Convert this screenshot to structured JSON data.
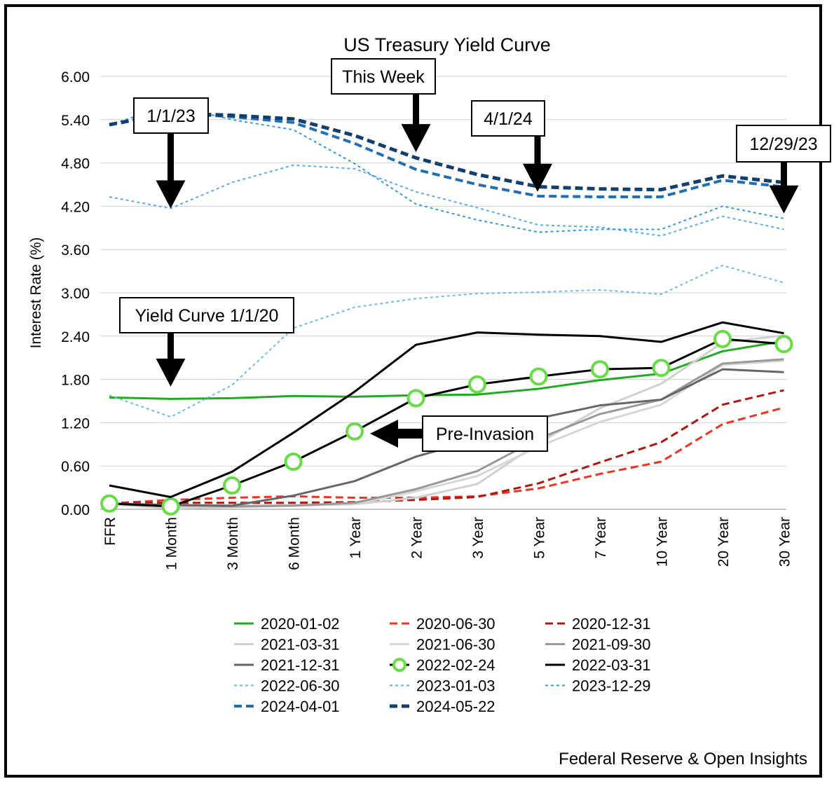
{
  "chart_data": {
    "type": "line",
    "title": "US Treasury Yield Curve",
    "ylabel": "Interest Rate (%)",
    "xlabel": "",
    "ylim": [
      0,
      6
    ],
    "yticks": [
      "0.00",
      "0.60",
      "1.20",
      "1.80",
      "2.40",
      "3.00",
      "3.60",
      "4.20",
      "4.80",
      "5.40",
      "6.00"
    ],
    "grid": "horizontal",
    "legend_position": "bottom",
    "categories": [
      "FFR",
      "1 Month",
      "3 Month",
      "6 Month",
      "1 Year",
      "2 Year",
      "3 Year",
      "5 Year",
      "7 Year",
      "10 Year",
      "20 Year",
      "30 Year"
    ],
    "series": [
      {
        "name": "2020-01-02",
        "color": "#22aa22",
        "style": "solid",
        "width": 3,
        "values": [
          1.55,
          1.53,
          1.54,
          1.57,
          1.56,
          1.58,
          1.59,
          1.67,
          1.79,
          1.88,
          2.19,
          2.33
        ]
      },
      {
        "name": "2020-06-30",
        "color": "#ee3322",
        "style": "dash",
        "width": 3,
        "values": [
          0.08,
          0.13,
          0.16,
          0.18,
          0.16,
          0.16,
          0.18,
          0.29,
          0.49,
          0.66,
          1.18,
          1.41
        ]
      },
      {
        "name": "2020-12-31",
        "color": "#aa1a10",
        "style": "dash",
        "width": 3,
        "values": [
          0.09,
          0.09,
          0.09,
          0.09,
          0.1,
          0.13,
          0.17,
          0.36,
          0.65,
          0.93,
          1.45,
          1.65
        ]
      },
      {
        "name": "2021-03-31",
        "color": "#d0d0d0",
        "style": "solid",
        "width": 3,
        "values": [
          0.07,
          0.01,
          0.03,
          0.05,
          0.07,
          0.16,
          0.35,
          0.92,
          1.4,
          1.74,
          2.31,
          2.41
        ]
      },
      {
        "name": "2021-06-30",
        "color": "#d6d6d6",
        "style": "solid",
        "width": 3,
        "values": [
          0.08,
          0.04,
          0.05,
          0.06,
          0.07,
          0.25,
          0.46,
          0.87,
          1.21,
          1.45,
          2.0,
          2.06
        ]
      },
      {
        "name": "2021-09-30",
        "color": "#999999",
        "style": "solid",
        "width": 3,
        "values": [
          0.08,
          0.06,
          0.04,
          0.05,
          0.09,
          0.28,
          0.53,
          0.98,
          1.32,
          1.52,
          2.02,
          2.08
        ]
      },
      {
        "name": "2021-12-31",
        "color": "#666666",
        "style": "solid",
        "width": 3,
        "values": [
          0.08,
          0.06,
          0.05,
          0.19,
          0.39,
          0.73,
          0.97,
          1.26,
          1.44,
          1.52,
          1.94,
          1.9
        ]
      },
      {
        "name": "2022-02-24",
        "color": "#000000",
        "style": "solid",
        "width": 3,
        "marker": "circle",
        "markerColor": "#66dd44",
        "values": [
          0.08,
          0.04,
          0.33,
          0.66,
          1.08,
          1.54,
          1.73,
          1.84,
          1.94,
          1.96,
          2.36,
          2.29
        ]
      },
      {
        "name": "2022-03-31",
        "color": "#000000",
        "style": "solid",
        "width": 3,
        "values": [
          0.33,
          0.17,
          0.52,
          1.06,
          1.63,
          2.28,
          2.45,
          2.42,
          2.4,
          2.32,
          2.59,
          2.44
        ]
      },
      {
        "name": "2022-06-30",
        "color": "#66bbee",
        "style": "dot",
        "width": 2,
        "values": [
          1.58,
          1.28,
          1.72,
          2.51,
          2.8,
          2.92,
          2.99,
          3.01,
          3.04,
          2.98,
          3.38,
          3.14
        ]
      },
      {
        "name": "2023-01-03",
        "color": "#55aaee",
        "style": "dot",
        "width": 2,
        "values": [
          4.33,
          4.17,
          4.53,
          4.77,
          4.72,
          4.4,
          4.18,
          3.94,
          3.91,
          3.79,
          4.06,
          3.88
        ]
      },
      {
        "name": "2023-12-29",
        "color": "#3399dd",
        "style": "dot",
        "width": 2,
        "values": [
          5.33,
          5.6,
          5.4,
          5.26,
          4.79,
          4.23,
          4.01,
          3.84,
          3.88,
          3.88,
          4.2,
          4.03
        ]
      },
      {
        "name": "2024-04-01",
        "color": "#1f6fb4",
        "style": "dash",
        "width": 4,
        "values": [
          5.33,
          5.49,
          5.44,
          5.36,
          5.07,
          4.71,
          4.5,
          4.34,
          4.33,
          4.33,
          4.56,
          4.47
        ]
      },
      {
        "name": "2024-05-22",
        "color": "#123f6e",
        "style": "dash",
        "width": 5,
        "values": [
          5.33,
          5.49,
          5.46,
          5.41,
          5.18,
          4.87,
          4.64,
          4.47,
          4.44,
          4.43,
          4.62,
          4.53
        ]
      }
    ],
    "annotations": [
      {
        "label": "This Week",
        "arrow": "down",
        "target_category": "2 Year",
        "target_value": 4.95
      },
      {
        "label": "1/1/23",
        "arrow": "down",
        "target_category": "1 Month",
        "target_value": 4.17
      },
      {
        "label": "4/1/24",
        "arrow": "down",
        "target_category": "5 Year",
        "target_value": 4.4
      },
      {
        "label": "12/29/23",
        "arrow": "down",
        "target_category": "30 Year",
        "target_value": 4.1
      },
      {
        "label": "Yield Curve 1/1/20",
        "arrow": "down",
        "target_category": "1 Month",
        "target_value": 1.7
      },
      {
        "label": "Pre-Invasion",
        "arrow": "left",
        "target_category": "1 Year",
        "target_value": 1.08
      }
    ]
  },
  "source": "Federal Reserve & Open Insights"
}
